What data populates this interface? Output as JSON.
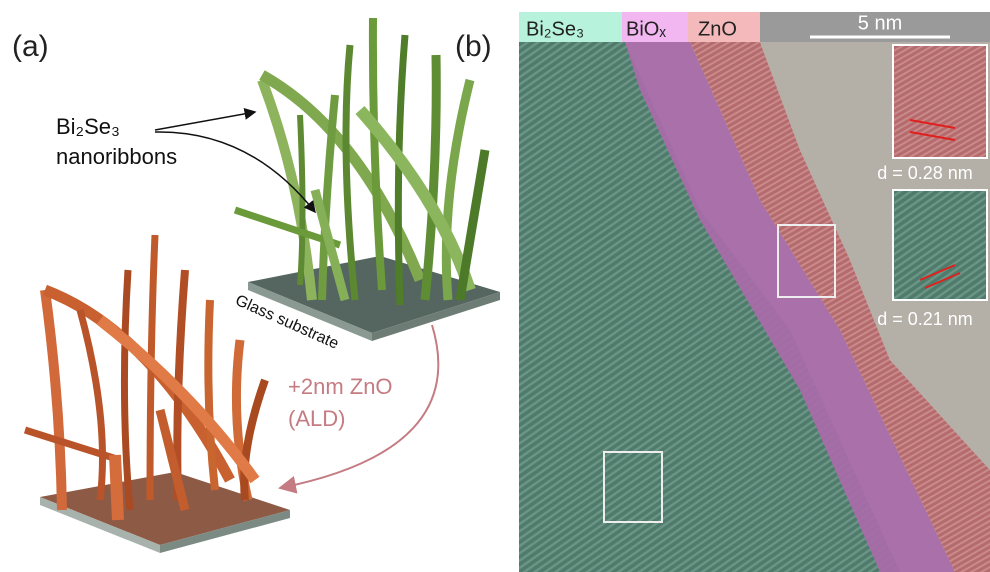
{
  "panel_a": {
    "label": "(a)",
    "ribbon_label": "Bi₂Se₃",
    "ribbon_label_2": "nanoribbons",
    "substrate_label": "Glass substrate",
    "process_label": "+2nm ZnO",
    "process_label_2": "(ALD)"
  },
  "panel_b": {
    "label": "(b)",
    "legend": [
      "Bi₂Se₃",
      "BiOₓ",
      "ZnO"
    ],
    "scale_bar": "5 nm",
    "inset_1": "d = 0.28 nm",
    "inset_2": "d = 0.21 nm"
  }
}
